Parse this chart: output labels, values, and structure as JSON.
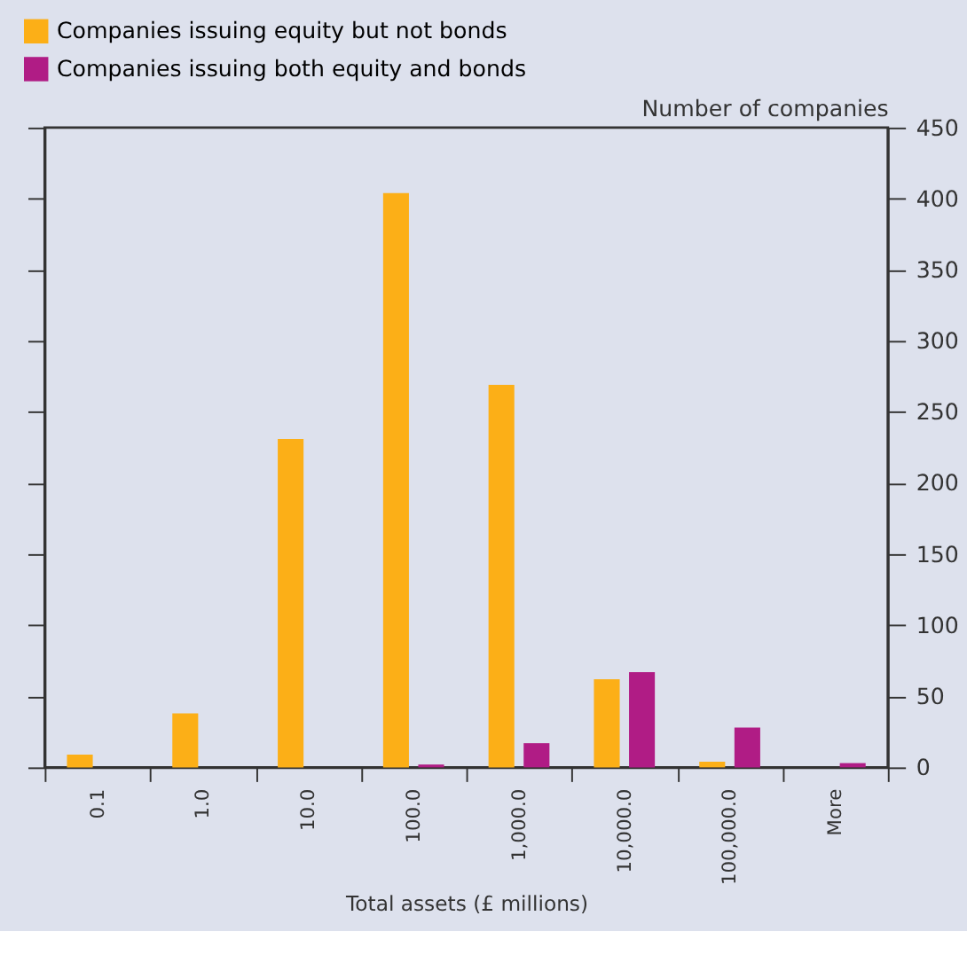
{
  "chart_data": {
    "type": "bar",
    "xlabel": "Total assets (£ millions)",
    "ylabel": "Number of companies",
    "categories": [
      "0.1",
      "1.0",
      "10.0",
      "100.0",
      "1,000.0",
      "10,000.0",
      "100,000.0",
      "More"
    ],
    "series": [
      {
        "name": "Companies issuing equity but not bonds",
        "color": "#fcaf17",
        "values": [
          9,
          38,
          231,
          404,
          269,
          62,
          4,
          0
        ]
      },
      {
        "name": "Companies issuing both equity and bonds",
        "color": "#b01c85",
        "values": [
          0,
          0,
          0,
          2,
          17,
          67,
          28,
          3
        ]
      }
    ],
    "ylim": [
      0,
      450
    ],
    "yticks": [
      0,
      50,
      100,
      150,
      200,
      250,
      300,
      350,
      400,
      450
    ],
    "grid": false,
    "legend": "top left"
  }
}
